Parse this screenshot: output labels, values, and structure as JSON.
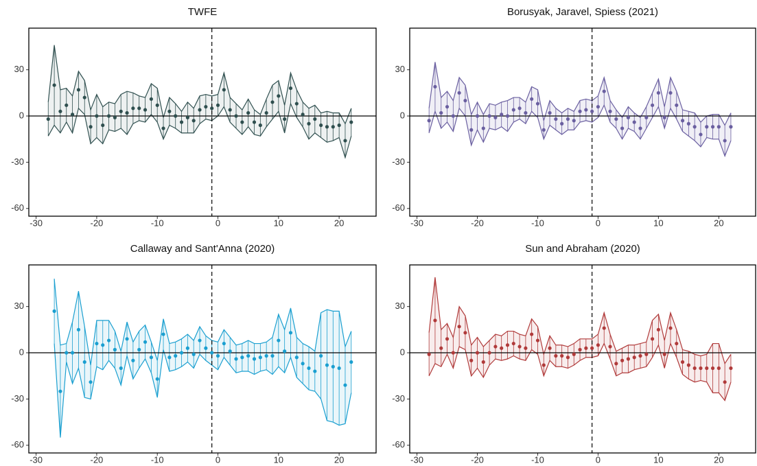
{
  "chart_data": [
    {
      "type": "errorband",
      "title": "TWFE",
      "color": "#2f4f4f",
      "fill": "#eef1f1",
      "x": [
        -28,
        -27,
        -26,
        -25,
        -24,
        -23,
        -22,
        -21,
        -20,
        -19,
        -18,
        -17,
        -16,
        -15,
        -14,
        -13,
        -12,
        -11,
        -10,
        -9,
        -8,
        -7,
        -6,
        -5,
        -4,
        -3,
        -2,
        -1,
        0,
        1,
        2,
        3,
        4,
        5,
        6,
        7,
        8,
        9,
        10,
        11,
        12,
        13,
        14,
        15,
        16,
        17,
        18,
        19,
        20,
        21,
        22
      ],
      "values": [
        -2,
        20,
        3,
        7,
        1,
        17,
        12,
        -7,
        0,
        -6,
        0,
        -1,
        3,
        2,
        5,
        5,
        4,
        11,
        7,
        -8,
        3,
        0,
        -4,
        -1,
        -3,
        4,
        6,
        5,
        7,
        17,
        4,
        0,
        -4,
        2,
        -4,
        -6,
        2,
        9,
        13,
        -2,
        18,
        8,
        1,
        -5,
        -2,
        -6,
        -7,
        -7,
        -6,
        -16,
        -4
      ],
      "upper": [
        9,
        46,
        17,
        18,
        13,
        29,
        23,
        4,
        14,
        6,
        9,
        8,
        14,
        16,
        15,
        13,
        12,
        21,
        18,
        -1,
        12,
        8,
        3,
        9,
        5,
        13,
        14,
        13,
        14,
        28,
        12,
        8,
        4,
        11,
        4,
        1,
        11,
        20,
        23,
        7,
        28,
        17,
        9,
        5,
        7,
        2,
        3,
        2,
        2,
        -5,
        5
      ],
      "lower": [
        -13,
        -6,
        -11,
        -4,
        -11,
        5,
        1,
        -18,
        -14,
        -18,
        -9,
        -10,
        -8,
        -12,
        -5,
        -3,
        -4,
        1,
        -4,
        -15,
        -6,
        -8,
        -11,
        -11,
        -11,
        -5,
        -2,
        -3,
        0,
        6,
        -4,
        -8,
        -12,
        -7,
        -12,
        -13,
        -7,
        -2,
        3,
        -11,
        8,
        -1,
        -7,
        -15,
        -11,
        -14,
        -17,
        -16,
        -14,
        -27,
        -13
      ],
      "xlim": [
        -31.2,
        26.1
      ],
      "ylim": [
        -65,
        57
      ],
      "xticks": [
        -30,
        -20,
        -10,
        0,
        10,
        20
      ],
      "yticks": [
        -60,
        -30,
        0,
        30
      ],
      "hline": 0,
      "vline": -1
    },
    {
      "type": "errorband",
      "title": "Borusyak, Jaravel, Spiess (2021)",
      "color": "#6a5fa0",
      "fill": "#f0eff6",
      "x": [
        -28,
        -27,
        -26,
        -25,
        -24,
        -23,
        -22,
        -21,
        -20,
        -19,
        -18,
        -17,
        -16,
        -15,
        -14,
        -13,
        -12,
        -11,
        -10,
        -9,
        -8,
        -7,
        -6,
        -5,
        -4,
        -3,
        -2,
        -1,
        0,
        1,
        2,
        3,
        4,
        5,
        6,
        7,
        8,
        9,
        10,
        11,
        12,
        13,
        14,
        15,
        16,
        17,
        18,
        19,
        20,
        21,
        22
      ],
      "values": [
        -3,
        19,
        2,
        6,
        0,
        15,
        10,
        -9,
        0,
        -8,
        0,
        -1,
        1,
        0,
        4,
        5,
        2,
        11,
        8,
        -9,
        2,
        -2,
        -5,
        -2,
        -3,
        3,
        4,
        3,
        6,
        16,
        3,
        -2,
        -8,
        -1,
        -4,
        -8,
        -1,
        7,
        15,
        -1,
        15,
        7,
        -3,
        -5,
        -7,
        -12,
        -7,
        -7,
        -7,
        -16,
        -7
      ],
      "upper": [
        5,
        35,
        12,
        16,
        10,
        25,
        20,
        1,
        9,
        1,
        8,
        7,
        9,
        10,
        12,
        12,
        9,
        19,
        17,
        -3,
        10,
        5,
        2,
        5,
        3,
        10,
        11,
        10,
        13,
        25,
        10,
        4,
        -1,
        6,
        2,
        -1,
        6,
        15,
        24,
        6,
        25,
        16,
        4,
        3,
        2,
        -4,
        0,
        1,
        1,
        -6,
        2
      ],
      "lower": [
        -11,
        3,
        -8,
        -4,
        -10,
        5,
        0,
        -19,
        -9,
        -17,
        -8,
        -9,
        -7,
        -10,
        -4,
        -2,
        -5,
        3,
        -1,
        -15,
        -6,
        -9,
        -12,
        -9,
        -9,
        -4,
        -3,
        -4,
        -1,
        7,
        -4,
        -8,
        -15,
        -8,
        -10,
        -15,
        -8,
        -1,
        6,
        -8,
        5,
        -2,
        -10,
        -13,
        -16,
        -20,
        -14,
        -15,
        -15,
        -26,
        -16
      ],
      "xlim": [
        -31.2,
        26.1
      ],
      "ylim": [
        -65,
        57
      ],
      "xticks": [
        -30,
        -20,
        -10,
        0,
        10,
        20
      ],
      "yticks": [
        -60,
        -30,
        0,
        30
      ],
      "hline": 0,
      "vline": -1
    },
    {
      "type": "errorband",
      "title": "Callaway and Sant'Anna (2020)",
      "color": "#1a9fd0",
      "fill": "#eaf6fa",
      "x": [
        -27,
        -26,
        -25,
        -24,
        -23,
        -22,
        -21,
        -20,
        -19,
        -18,
        -17,
        -16,
        -15,
        -14,
        -13,
        -12,
        -11,
        -10,
        -9,
        -8,
        -7,
        -6,
        -5,
        -4,
        -3,
        -2,
        -1,
        0,
        1,
        2,
        3,
        4,
        5,
        6,
        7,
        8,
        9,
        10,
        11,
        12,
        13,
        14,
        15,
        16,
        17,
        18,
        19,
        20,
        21,
        22
      ],
      "values": [
        27,
        -25,
        0,
        0,
        15,
        -6,
        -19,
        6,
        5,
        8,
        2,
        -10,
        9,
        -5,
        2,
        7,
        -3,
        -17,
        12,
        -3,
        -2,
        0,
        3,
        -1,
        8,
        3,
        0,
        -2,
        6,
        1,
        -4,
        -3,
        -2,
        -4,
        -3,
        -2,
        -2,
        8,
        1,
        13,
        -3,
        -7,
        -10,
        -12,
        -2,
        -8,
        -9,
        -10,
        -21,
        -6
      ],
      "upper": [
        48,
        5,
        6,
        20,
        40,
        17,
        -8,
        21,
        21,
        21,
        14,
        1,
        20,
        7,
        14,
        18,
        7,
        -5,
        22,
        6,
        7,
        9,
        12,
        8,
        17,
        11,
        8,
        7,
        15,
        10,
        5,
        6,
        8,
        6,
        6,
        7,
        10,
        25,
        15,
        29,
        10,
        6,
        4,
        1,
        26,
        28,
        27,
        27,
        4,
        14
      ],
      "lower": [
        6,
        -55,
        -6,
        -20,
        -10,
        -29,
        -30,
        -9,
        -11,
        -5,
        -10,
        -21,
        -2,
        -17,
        -10,
        -4,
        -13,
        -29,
        2,
        -12,
        -11,
        -9,
        -6,
        -10,
        -1,
        -5,
        -8,
        -11,
        -3,
        -8,
        -13,
        -12,
        -12,
        -14,
        -12,
        -11,
        -14,
        -9,
        -13,
        -3,
        -16,
        -20,
        -24,
        -25,
        -30,
        -44,
        -45,
        -47,
        -46,
        -26
      ],
      "xlim": [
        -31.2,
        26.1
      ],
      "ylim": [
        -65,
        57
      ],
      "xticks": [
        -30,
        -20,
        -10,
        0,
        10,
        20
      ],
      "yticks": [
        -60,
        -30,
        0,
        30
      ],
      "hline": 0,
      "vline": -1
    },
    {
      "type": "errorband",
      "title": "Sun and Abraham (2020)",
      "color": "#b03a3a",
      "fill": "#f8eded",
      "x": [
        -28,
        -27,
        -26,
        -25,
        -24,
        -23,
        -22,
        -21,
        -20,
        -19,
        -18,
        -17,
        -16,
        -15,
        -14,
        -13,
        -12,
        -11,
        -10,
        -9,
        -8,
        -7,
        -6,
        -5,
        -4,
        -3,
        -2,
        -1,
        0,
        1,
        2,
        3,
        4,
        5,
        6,
        7,
        8,
        9,
        10,
        11,
        12,
        13,
        14,
        15,
        16,
        17,
        18,
        19,
        20,
        21,
        22
      ],
      "values": [
        -1,
        21,
        3,
        9,
        0,
        17,
        13,
        -5,
        0,
        -6,
        0,
        4,
        3,
        5,
        6,
        4,
        3,
        12,
        8,
        -8,
        3,
        -2,
        -2,
        -3,
        -1,
        2,
        3,
        3,
        5,
        16,
        4,
        -7,
        -5,
        -4,
        -3,
        -2,
        -1,
        9,
        15,
        -1,
        16,
        6,
        -6,
        -8,
        -10,
        -10,
        -10,
        -10,
        -10,
        -19,
        -10
      ],
      "upper": [
        13,
        49,
        15,
        19,
        10,
        30,
        24,
        5,
        10,
        4,
        8,
        12,
        11,
        14,
        14,
        12,
        11,
        22,
        17,
        -1,
        11,
        5,
        5,
        4,
        6,
        9,
        9,
        9,
        12,
        26,
        12,
        1,
        3,
        5,
        5,
        6,
        7,
        21,
        25,
        8,
        26,
        15,
        2,
        1,
        -1,
        -2,
        -1,
        6,
        6,
        -7,
        -1
      ],
      "lower": [
        -15,
        -7,
        -9,
        -1,
        -10,
        4,
        2,
        -15,
        -10,
        -16,
        -8,
        -4,
        -5,
        -4,
        -2,
        -4,
        -5,
        2,
        -1,
        -15,
        -5,
        -9,
        -9,
        -10,
        -8,
        -5,
        -3,
        -3,
        -2,
        6,
        -4,
        -15,
        -13,
        -13,
        -11,
        -10,
        -9,
        -3,
        5,
        -10,
        6,
        -3,
        -14,
        -17,
        -19,
        -18,
        -19,
        -26,
        -26,
        -31,
        -19
      ],
      "xlim": [
        -31.2,
        26.1
      ],
      "ylim": [
        -65,
        57
      ],
      "xticks": [
        -30,
        -20,
        -10,
        0,
        10,
        20
      ],
      "yticks": [
        -60,
        -30,
        0,
        30
      ],
      "hline": 0,
      "vline": -1
    }
  ]
}
